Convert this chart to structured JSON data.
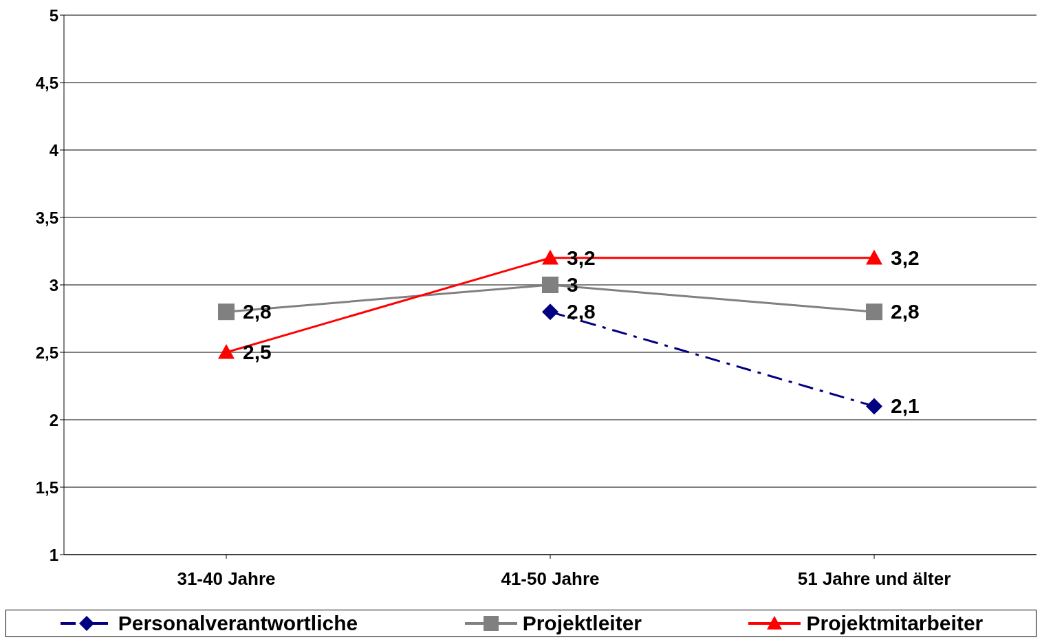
{
  "chart_data": {
    "type": "line",
    "categories": [
      "31-40 Jahre",
      "41-50 Jahre",
      "51 Jahre und älter"
    ],
    "series": [
      {
        "name": "Personalverantwortliche",
        "color": "#000080",
        "values": [
          null,
          2.8,
          2.1
        ],
        "marker": "diamond",
        "line_style": "dashdot",
        "value_labels": [
          null,
          "2,8",
          "2,1"
        ]
      },
      {
        "name": "Projektleiter",
        "color": "#808080",
        "values": [
          2.8,
          3,
          2.8
        ],
        "marker": "square",
        "line_style": "solid",
        "value_labels": [
          "2,8",
          "3",
          "2,8"
        ]
      },
      {
        "name": "Projektmitarbeiter",
        "color": "#ff0000",
        "values": [
          2.5,
          3.2,
          3.2
        ],
        "marker": "triangle",
        "line_style": "solid",
        "value_labels": [
          "2,5",
          "3,2",
          "3,2"
        ]
      }
    ],
    "ylim": [
      1,
      5
    ],
    "yticks": [
      1,
      {
        "value": 1.5,
        "label": "1,5"
      },
      2,
      {
        "value": 2.5,
        "label": "2,5"
      },
      3,
      {
        "value": 3.5,
        "label": "3,5"
      },
      4,
      {
        "value": 4.5,
        "label": "4,5"
      },
      5
    ],
    "grid": "y",
    "legend": "bottom"
  }
}
